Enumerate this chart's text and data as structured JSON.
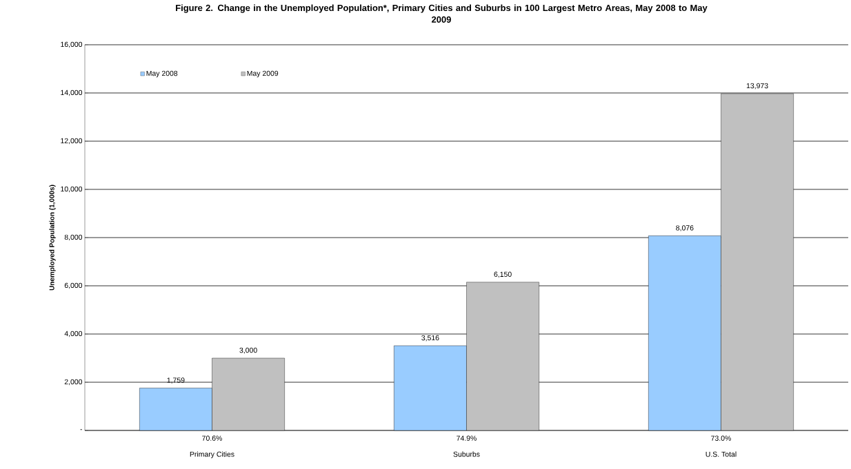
{
  "chart_data": {
    "type": "bar",
    "title": "Figure 2. Change in the Unemployed Population*, Primary Cities and Suburbs in 100 Largest Metro Areas, May 2008 to May 2009",
    "ylabel": "Unemployed Population (1,000s)",
    "categories": [
      "Primary Cities",
      "Suburbs",
      "U.S. Total"
    ],
    "series": [
      {
        "name": "May 2008",
        "color": "#99ccff",
        "values": [
          1759,
          3516,
          8076
        ],
        "value_labels": [
          "1,759",
          "3,516",
          "8,076"
        ]
      },
      {
        "name": "May 2009",
        "color": "#c0c0c0",
        "values": [
          3000,
          6150,
          13973
        ],
        "value_labels": [
          "3,000",
          "6,150",
          "13,973"
        ]
      }
    ],
    "ylim": [
      0,
      16000
    ],
    "yticks": [
      {
        "value": 0,
        "label": "-"
      },
      {
        "value": 2000,
        "label": "2,000"
      },
      {
        "value": 4000,
        "label": "4,000"
      },
      {
        "value": 6000,
        "label": "6,000"
      },
      {
        "value": 8000,
        "label": "8,000"
      },
      {
        "value": 10000,
        "label": "10,000"
      },
      {
        "value": 12000,
        "label": "12,000"
      },
      {
        "value": 14000,
        "label": "14,000"
      },
      {
        "value": 16000,
        "label": "16,000"
      }
    ],
    "annotations": [
      "70.6%",
      "74.9%",
      "73.0%"
    ],
    "grid": "y",
    "legend": "top left"
  }
}
